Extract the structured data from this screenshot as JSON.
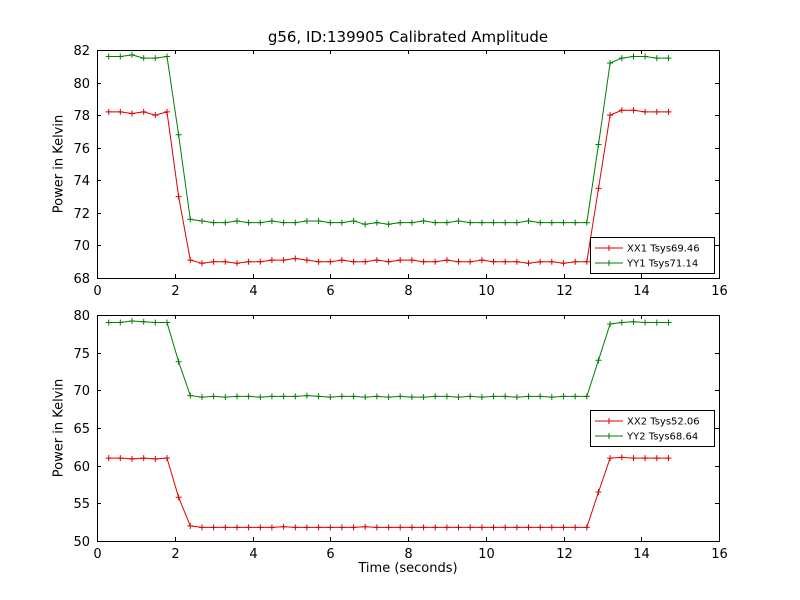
{
  "figure": {
    "title": "g56, ID:139905 Calibrated Amplitude",
    "background": "#ffffff"
  },
  "colors": {
    "red": "#dd0000",
    "green": "#007f00",
    "axis": "#000000"
  },
  "chart_data": [
    {
      "type": "line",
      "title": "",
      "xlabel": "",
      "ylabel": "Power in Kelvin",
      "xlim": [
        0,
        16
      ],
      "ylim": [
        68,
        82
      ],
      "xticks": [
        0,
        2,
        4,
        6,
        8,
        10,
        12,
        14,
        16
      ],
      "yticks": [
        68,
        70,
        72,
        74,
        76,
        78,
        80,
        82
      ],
      "legend_loc": "lower right",
      "marker": "plus",
      "x": [
        0.3,
        0.6,
        0.9,
        1.2,
        1.5,
        1.8,
        2.1,
        2.4,
        2.7,
        3.0,
        3.3,
        3.6,
        3.9,
        4.2,
        4.5,
        4.8,
        5.1,
        5.4,
        5.7,
        6.0,
        6.3,
        6.6,
        6.9,
        7.2,
        7.5,
        7.8,
        8.1,
        8.4,
        8.7,
        9.0,
        9.3,
        9.6,
        9.9,
        10.2,
        10.5,
        10.8,
        11.1,
        11.4,
        11.7,
        12.0,
        12.3,
        12.6,
        12.9,
        13.2,
        13.5,
        13.8,
        14.1,
        14.4,
        14.7
      ],
      "series": [
        {
          "name": "XX1",
          "label": "XX1 Tsys69.46",
          "tsys": 69.46,
          "color": "#dd0000",
          "values": [
            78.2,
            78.2,
            78.1,
            78.2,
            78.0,
            78.2,
            73.0,
            69.1,
            68.9,
            69.0,
            69.0,
            68.9,
            69.0,
            69.0,
            69.1,
            69.1,
            69.2,
            69.1,
            69.0,
            69.0,
            69.1,
            69.0,
            69.0,
            69.1,
            69.0,
            69.1,
            69.1,
            69.0,
            69.0,
            69.1,
            69.0,
            69.0,
            69.1,
            69.0,
            69.0,
            69.0,
            68.9,
            69.0,
            69.0,
            68.9,
            69.0,
            69.0,
            73.5,
            78.0,
            78.3,
            78.3,
            78.2,
            78.2,
            78.2
          ]
        },
        {
          "name": "YY1",
          "label": "YY1 Tsys71.14",
          "tsys": 71.14,
          "color": "#007f00",
          "values": [
            81.6,
            81.6,
            81.7,
            81.5,
            81.5,
            81.6,
            76.8,
            71.6,
            71.5,
            71.4,
            71.4,
            71.5,
            71.4,
            71.4,
            71.5,
            71.4,
            71.4,
            71.5,
            71.5,
            71.4,
            71.4,
            71.5,
            71.3,
            71.4,
            71.3,
            71.4,
            71.4,
            71.5,
            71.4,
            71.4,
            71.5,
            71.4,
            71.4,
            71.4,
            71.4,
            71.4,
            71.5,
            71.4,
            71.4,
            71.4,
            71.4,
            71.4,
            76.2,
            81.2,
            81.5,
            81.6,
            81.6,
            81.5,
            81.5
          ]
        }
      ]
    },
    {
      "type": "line",
      "title": "",
      "xlabel": "Time (seconds)",
      "ylabel": "Power in Kelvin",
      "xlim": [
        0,
        16
      ],
      "ylim": [
        50,
        80
      ],
      "xticks": [
        0,
        2,
        4,
        6,
        8,
        10,
        12,
        14,
        16
      ],
      "yticks": [
        50,
        55,
        60,
        65,
        70,
        75,
        80
      ],
      "legend_loc": "center right",
      "marker": "plus",
      "x": [
        0.3,
        0.6,
        0.9,
        1.2,
        1.5,
        1.8,
        2.1,
        2.4,
        2.7,
        3.0,
        3.3,
        3.6,
        3.9,
        4.2,
        4.5,
        4.8,
        5.1,
        5.4,
        5.7,
        6.0,
        6.3,
        6.6,
        6.9,
        7.2,
        7.5,
        7.8,
        8.1,
        8.4,
        8.7,
        9.0,
        9.3,
        9.6,
        9.9,
        10.2,
        10.5,
        10.8,
        11.1,
        11.4,
        11.7,
        12.0,
        12.3,
        12.6,
        12.9,
        13.2,
        13.5,
        13.8,
        14.1,
        14.4,
        14.7
      ],
      "series": [
        {
          "name": "XX2",
          "label": "XX2 Tsys52.06",
          "tsys": 52.06,
          "color": "#dd0000",
          "values": [
            61.0,
            61.0,
            60.9,
            61.0,
            60.9,
            61.0,
            55.8,
            52.0,
            51.8,
            51.8,
            51.8,
            51.8,
            51.8,
            51.8,
            51.8,
            51.9,
            51.8,
            51.8,
            51.8,
            51.8,
            51.8,
            51.8,
            51.9,
            51.8,
            51.8,
            51.8,
            51.8,
            51.8,
            51.8,
            51.8,
            51.8,
            51.8,
            51.8,
            51.8,
            51.8,
            51.8,
            51.8,
            51.8,
            51.8,
            51.8,
            51.8,
            51.8,
            56.5,
            61.0,
            61.1,
            61.0,
            61.0,
            61.0,
            61.0
          ]
        },
        {
          "name": "YY2",
          "label": "YY2 Tsys68.64",
          "tsys": 68.64,
          "color": "#007f00",
          "values": [
            79.0,
            79.0,
            79.2,
            79.1,
            79.0,
            79.0,
            73.8,
            69.3,
            69.1,
            69.2,
            69.1,
            69.2,
            69.2,
            69.1,
            69.2,
            69.2,
            69.2,
            69.3,
            69.2,
            69.1,
            69.2,
            69.2,
            69.1,
            69.2,
            69.1,
            69.2,
            69.1,
            69.1,
            69.2,
            69.2,
            69.1,
            69.2,
            69.1,
            69.2,
            69.2,
            69.1,
            69.2,
            69.2,
            69.1,
            69.2,
            69.2,
            69.2,
            74.0,
            78.8,
            79.0,
            79.1,
            79.0,
            79.0,
            79.0
          ]
        }
      ]
    }
  ]
}
